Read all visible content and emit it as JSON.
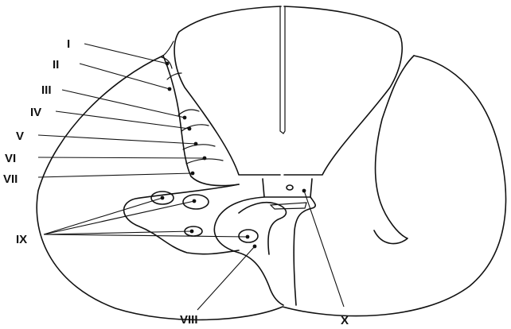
{
  "labels": {
    "lamina_1": "I",
    "lamina_2": "II",
    "lamina_3": "III",
    "lamina_4": "IV",
    "lamina_5": "V",
    "lamina_6": "VI",
    "lamina_7": "VII",
    "lamina_8": "VIII",
    "lamina_9": "IX",
    "lamina_10": "X"
  }
}
